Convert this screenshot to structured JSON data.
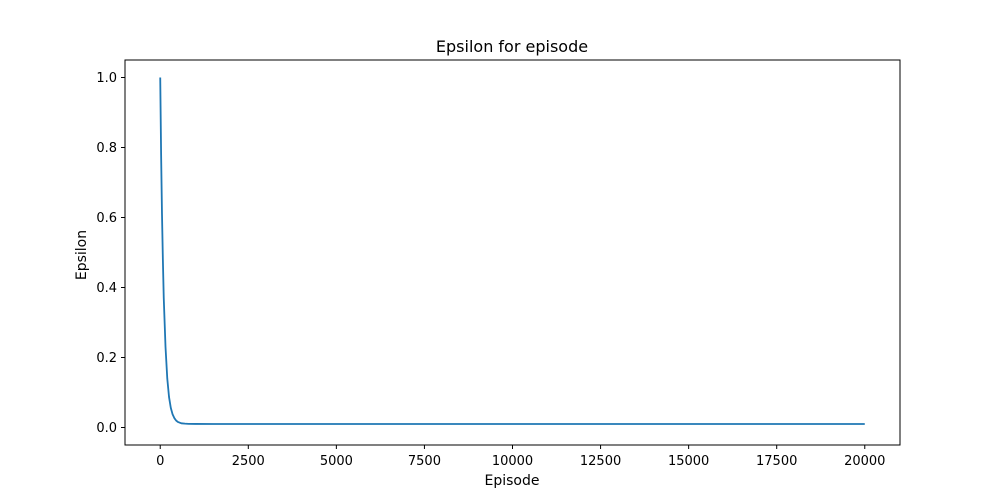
{
  "chart_data": {
    "type": "line",
    "title": "Epsilon for episode",
    "xlabel": "Episode",
    "ylabel": "Epsilon",
    "xlim": [
      -1000,
      21000
    ],
    "ylim": [
      -0.05,
      1.05
    ],
    "xticks": [
      0,
      2500,
      5000,
      7500,
      10000,
      12500,
      15000,
      17500,
      20000
    ],
    "yticks": [
      0.0,
      0.2,
      0.4,
      0.6,
      0.8,
      1.0
    ],
    "xtick_labels": [
      "0",
      "2500",
      "5000",
      "7500",
      "10000",
      "12500",
      "15000",
      "17500",
      "20000"
    ],
    "ytick_labels": [
      "0.0",
      "0.2",
      "0.4",
      "0.6",
      "0.8",
      "1.0"
    ],
    "grid": false,
    "series": [
      {
        "color": "#1f77b4",
        "x": [
          0,
          25,
          50,
          75,
          100,
          150,
          200,
          250,
          300,
          350,
          400,
          450,
          500,
          600,
          700,
          800,
          1000,
          1500,
          2500,
          5000,
          10000,
          15000,
          20000
        ],
        "y": [
          1.0,
          0.78,
          0.61,
          0.48,
          0.37,
          0.23,
          0.14,
          0.087,
          0.056,
          0.038,
          0.027,
          0.02,
          0.016,
          0.012,
          0.011,
          0.0104,
          0.0101,
          0.01,
          0.01,
          0.01,
          0.01,
          0.01,
          0.01
        ]
      }
    ]
  }
}
